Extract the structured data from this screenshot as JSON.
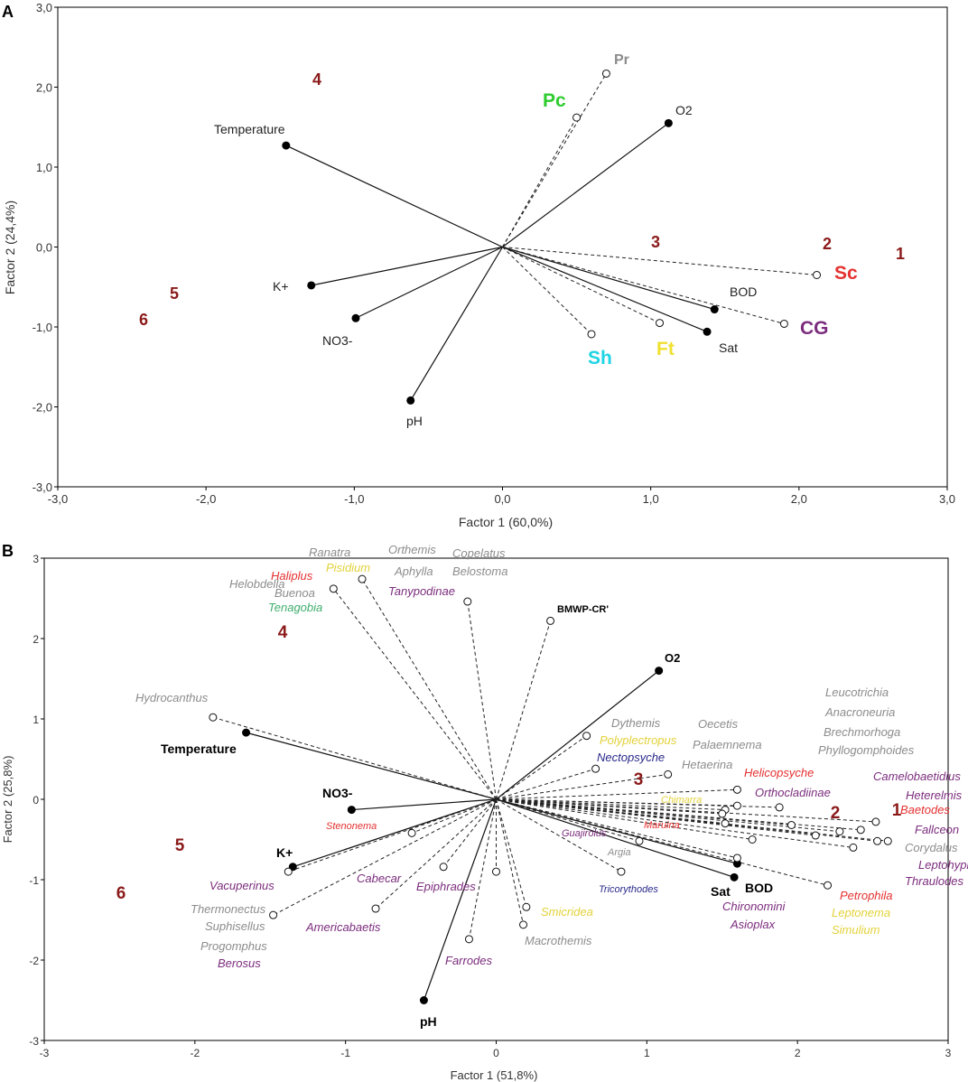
{
  "colors": {
    "darkred": "#8b1a1a",
    "red": "#e53131",
    "green": "#2ecc2e",
    "gray": "#8c8c8c",
    "purple": "#7b2c7d",
    "cyan": "#1fd4e4",
    "yellow": "#f0e030",
    "tenagobia": "#3fae6e",
    "navy": "#2a2a8c",
    "black": "#000000"
  },
  "chart_data": [
    {
      "panel": "A",
      "type": "scatter",
      "subtype": "biplot",
      "xlabel": "Factor 1 (60,0%)",
      "ylabel": "Factor 2 (24,4%)",
      "xlim": [
        -3,
        3
      ],
      "ylim": [
        -3,
        3
      ],
      "x_ticks": [
        "-3,0",
        "-2,0",
        "-1,0",
        "0,0",
        "1,0",
        "2,0",
        "3,0"
      ],
      "y_ticks": [
        "-3,0",
        "-2,0",
        "-1,0",
        "0,0",
        "1,0",
        "2,0",
        "3,0"
      ],
      "variables": [
        {
          "name": "Temperature",
          "x": -1.46,
          "y": 1.27
        },
        {
          "name": "O2",
          "x": 1.12,
          "y": 1.55
        },
        {
          "name": "K+",
          "x": -1.29,
          "y": -0.48
        },
        {
          "name": "NO3-",
          "x": -0.99,
          "y": -0.89
        },
        {
          "name": "pH",
          "x": -0.62,
          "y": -1.92
        },
        {
          "name": "BOD",
          "x": 1.43,
          "y": -0.78
        },
        {
          "name": "Sat",
          "x": 1.38,
          "y": -1.06
        }
      ],
      "groups": [
        {
          "name": "Pr",
          "x": 0.7,
          "y": 2.17,
          "color": "gray"
        },
        {
          "name": "Pc",
          "x": 0.5,
          "y": 1.62,
          "color": "green"
        },
        {
          "name": "Sc",
          "x": 2.12,
          "y": -0.35,
          "color": "red"
        },
        {
          "name": "CG",
          "x": 1.9,
          "y": -0.96,
          "color": "purple"
        },
        {
          "name": "Sh",
          "x": 0.6,
          "y": -1.09,
          "color": "cyan"
        },
        {
          "name": "Ft",
          "x": 1.06,
          "y": -0.95,
          "color": "yellow"
        }
      ],
      "sites": [
        {
          "name": "1",
          "x": 2.67,
          "y": -0.08
        },
        {
          "name": "2",
          "x": 2.17,
          "y": 0.03
        },
        {
          "name": "3",
          "x": 1.03,
          "y": 0.05
        },
        {
          "name": "4",
          "x": -1.23,
          "y": 2.1
        },
        {
          "name": "5",
          "x": -2.2,
          "y": -0.58
        },
        {
          "name": "6",
          "x": -2.39,
          "y": -0.91
        }
      ]
    },
    {
      "panel": "B",
      "type": "scatter",
      "subtype": "biplot",
      "xlabel": "Factor 1 (51,8%)",
      "ylabel": "Factor 2 (25,8%)",
      "xlim": [
        -3,
        3
      ],
      "ylim": [
        -3,
        3
      ],
      "x_ticks": [
        "-3",
        "-2",
        "-1",
        "0",
        "1",
        "2",
        "3"
      ],
      "y_ticks": [
        "-3",
        "-2",
        "-1",
        "0",
        "1",
        "2",
        "3"
      ],
      "variables": [
        {
          "name": "O2",
          "x": 1.08,
          "y": 1.6
        },
        {
          "name": "Temperature",
          "x": -1.66,
          "y": 0.83
        },
        {
          "name": "NO3-",
          "x": -0.96,
          "y": -0.13
        },
        {
          "name": "K+",
          "x": -1.35,
          "y": -0.84
        },
        {
          "name": "pH",
          "x": -0.48,
          "y": -2.5
        },
        {
          "name": "Sat",
          "x": 1.58,
          "y": -0.97
        },
        {
          "name": "BOD",
          "x": 1.6,
          "y": -0.8
        }
      ],
      "index_vectors": [
        {
          "name": "BMWP-CR'",
          "x": 0.36,
          "y": 2.22
        }
      ],
      "taxa_points": [
        {
          "x": -1.08,
          "y": 2.62
        },
        {
          "x": -0.89,
          "y": 2.74
        },
        {
          "x": -0.19,
          "y": 2.46
        },
        {
          "x": -1.88,
          "y": 1.02
        },
        {
          "x": 0.6,
          "y": 0.79
        },
        {
          "x": 0.66,
          "y": 0.38
        },
        {
          "x": 1.14,
          "y": 0.31
        },
        {
          "x": 1.6,
          "y": 0.12
        },
        {
          "x": 1.6,
          "y": -0.08
        },
        {
          "x": 1.88,
          "y": -0.1
        },
        {
          "x": 2.52,
          "y": -0.28
        },
        {
          "x": 2.42,
          "y": -0.38
        },
        {
          "x": 2.6,
          "y": -0.52
        },
        {
          "x": 2.53,
          "y": -0.52
        },
        {
          "x": 2.37,
          "y": -0.6
        },
        {
          "x": 2.28,
          "y": -0.4
        },
        {
          "x": 2.12,
          "y": -0.45
        },
        {
          "x": 1.96,
          "y": -0.32
        },
        {
          "x": 1.52,
          "y": -0.13
        },
        {
          "x": 1.5,
          "y": -0.18
        },
        {
          "x": 1.52,
          "y": -0.3
        },
        {
          "x": 1.7,
          "y": -0.5
        },
        {
          "x": 1.6,
          "y": -0.73
        },
        {
          "x": 2.2,
          "y": -1.07
        },
        {
          "x": 0.95,
          "y": -0.52
        },
        {
          "x": 0.83,
          "y": -0.9
        },
        {
          "x": 0.2,
          "y": -1.34
        },
        {
          "x": 0.18,
          "y": -1.56
        },
        {
          "x": 0,
          "y": -0.9
        },
        {
          "x": -0.18,
          "y": -1.74
        },
        {
          "x": -0.35,
          "y": -0.84
        },
        {
          "x": -0.8,
          "y": -1.36
        },
        {
          "x": -0.56,
          "y": -0.42
        },
        {
          "x": -1.38,
          "y": -0.9
        },
        {
          "x": -1.48,
          "y": -1.44
        }
      ],
      "taxa_labels": [
        {
          "name": "Helobdella",
          "color": "gray"
        },
        {
          "name": "Ranatra",
          "color": "gray"
        },
        {
          "name": "Orthemis",
          "color": "gray"
        },
        {
          "name": "Copelatus",
          "color": "gray"
        },
        {
          "name": "Haliplus",
          "color": "red"
        },
        {
          "name": "Pisidium",
          "color": "yellow"
        },
        {
          "name": "Aphylla",
          "color": "gray"
        },
        {
          "name": "Belostoma",
          "color": "gray"
        },
        {
          "name": "Buenoa",
          "color": "gray"
        },
        {
          "name": "Tanypodinae",
          "color": "purple"
        },
        {
          "name": "Tenagobia",
          "color": "tenagobia"
        },
        {
          "name": "Hydrocanthus",
          "color": "gray"
        },
        {
          "name": "Leucotrichia",
          "color": "gray"
        },
        {
          "name": "Anacroneuria",
          "color": "gray"
        },
        {
          "name": "Brechmorhoga",
          "color": "gray"
        },
        {
          "name": "Phyllogomphoides",
          "color": "gray"
        },
        {
          "name": "Dythemis",
          "color": "gray"
        },
        {
          "name": "Oecetis",
          "color": "gray"
        },
        {
          "name": "Polyplectropus",
          "color": "yellow"
        },
        {
          "name": "Palaemnema",
          "color": "gray"
        },
        {
          "name": "Nectopsyche",
          "color": "navy"
        },
        {
          "name": "Hetaerina",
          "color": "gray"
        },
        {
          "name": "Helicopsyche",
          "color": "red"
        },
        {
          "name": "Camelobaetidius",
          "color": "purple"
        },
        {
          "name": "Orthocladiinae",
          "color": "purple"
        },
        {
          "name": "Heterelmis",
          "color": "purple"
        },
        {
          "name": "Chimarra",
          "color": "yellow"
        },
        {
          "name": "Baetodes",
          "color": "red"
        },
        {
          "name": "Maruina",
          "color": "red"
        },
        {
          "name": "Fallceon",
          "color": "purple"
        },
        {
          "name": "Guajirolus",
          "color": "purple"
        },
        {
          "name": "Corydalus",
          "color": "gray"
        },
        {
          "name": "Argia",
          "color": "gray"
        },
        {
          "name": "Leptohyphes",
          "color": "purple"
        },
        {
          "name": "Thraulodes",
          "color": "purple"
        },
        {
          "name": "Tricorythodes",
          "color": "navy"
        },
        {
          "name": "Petrophila",
          "color": "red"
        },
        {
          "name": "Chironomini",
          "color": "purple"
        },
        {
          "name": "Leptonema",
          "color": "yellow"
        },
        {
          "name": "Asioplax",
          "color": "purple"
        },
        {
          "name": "Simulium",
          "color": "yellow"
        },
        {
          "name": "Stenonema",
          "color": "red"
        },
        {
          "name": "Cabecar",
          "color": "purple"
        },
        {
          "name": "Epiphrades",
          "color": "purple"
        },
        {
          "name": "Smicridea",
          "color": "yellow"
        },
        {
          "name": "Vacuperinus",
          "color": "purple"
        },
        {
          "name": "Thermonectus",
          "color": "gray"
        },
        {
          "name": "Suphisellus",
          "color": "gray"
        },
        {
          "name": "Americabaetis",
          "color": "purple"
        },
        {
          "name": "Macrothemis",
          "color": "gray"
        },
        {
          "name": "Progomphus",
          "color": "gray"
        },
        {
          "name": "Berosus",
          "color": "purple"
        },
        {
          "name": "Farrodes",
          "color": "purple"
        }
      ],
      "sites": [
        {
          "name": "1",
          "x": 2.58,
          "y": -0.15
        },
        {
          "name": "2",
          "x": 2.24,
          "y": -0.18
        },
        {
          "name": "3",
          "x": 0.95,
          "y": 0.26
        },
        {
          "name": "4",
          "x": -1.41,
          "y": 2.02
        },
        {
          "name": "5",
          "x": -2.09,
          "y": -0.56
        },
        {
          "name": "6",
          "x": -2.48,
          "y": -1.16
        }
      ]
    }
  ]
}
